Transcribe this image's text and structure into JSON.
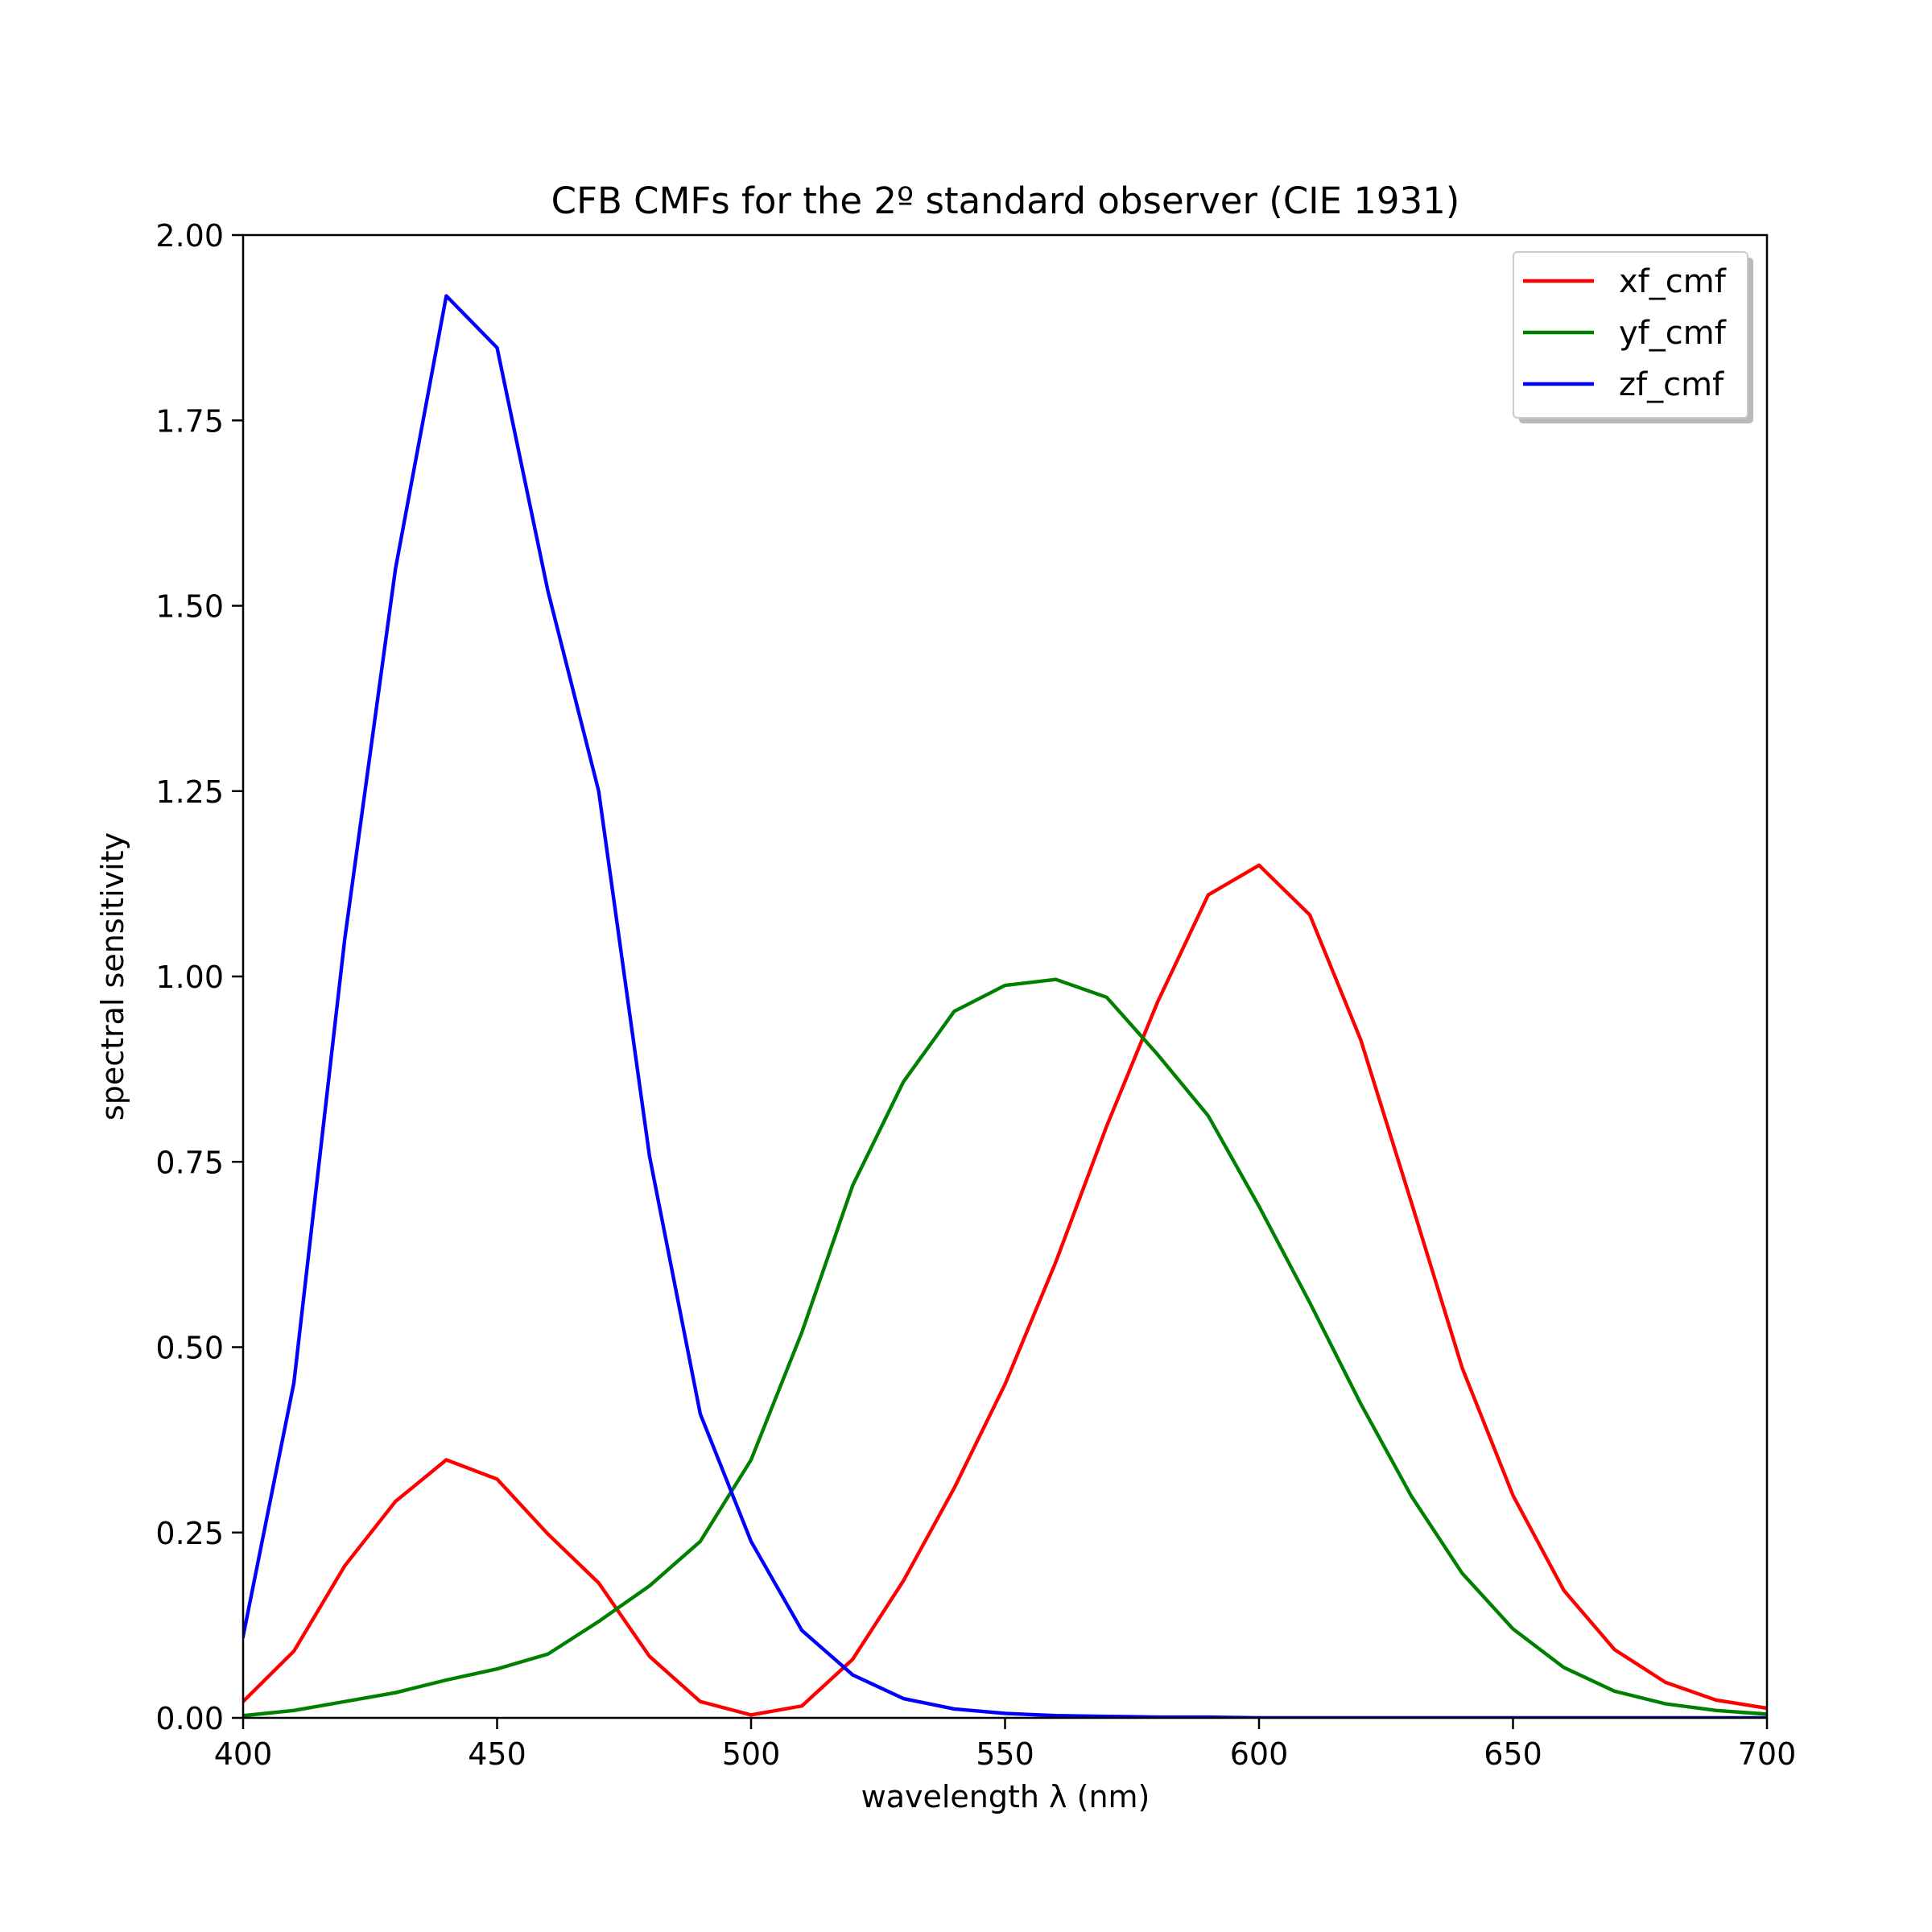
{
  "chart_data": {
    "type": "line",
    "title": "CFB CMFs for the 2º standard observer (CIE 1931)",
    "xlabel": "wavelength λ (nm)",
    "ylabel": "spectral sensitivity",
    "xlim": [
      400,
      700
    ],
    "ylim": [
      0,
      2.0
    ],
    "xticks": [
      "400",
      "450",
      "500",
      "550",
      "600",
      "650",
      "700"
    ],
    "yticks": [
      "0.00",
      "0.25",
      "0.50",
      "0.75",
      "1.00",
      "1.25",
      "1.50",
      "1.75",
      "2.00"
    ],
    "grid": false,
    "legend_position": "top-right",
    "x": [
      400,
      410,
      420,
      430,
      440,
      450,
      460,
      470,
      480,
      490,
      500,
      510,
      520,
      530,
      540,
      550,
      560,
      570,
      580,
      590,
      600,
      610,
      620,
      630,
      640,
      650,
      660,
      670,
      680,
      690,
      700
    ],
    "series": [
      {
        "name": "xf_cmf",
        "color": "#ff0000",
        "values": [
          0.022,
          0.09,
          0.205,
          0.292,
          0.348,
          0.322,
          0.248,
          0.182,
          0.083,
          0.022,
          0.004,
          0.016,
          0.079,
          0.185,
          0.31,
          0.45,
          0.615,
          0.798,
          0.965,
          1.11,
          1.15,
          1.083,
          0.915,
          0.695,
          0.472,
          0.3,
          0.172,
          0.092,
          0.048,
          0.024,
          0.013
        ]
      },
      {
        "name": "yf_cmf",
        "color": "#008000",
        "values": [
          0.003,
          0.01,
          0.022,
          0.034,
          0.051,
          0.066,
          0.086,
          0.13,
          0.178,
          0.238,
          0.348,
          0.52,
          0.718,
          0.858,
          0.953,
          0.988,
          0.996,
          0.972,
          0.895,
          0.812,
          0.69,
          0.56,
          0.424,
          0.299,
          0.195,
          0.12,
          0.068,
          0.036,
          0.019,
          0.01,
          0.005
        ]
      },
      {
        "name": "zf_cmf",
        "color": "#0000ff",
        "values": [
          0.11,
          0.452,
          1.05,
          1.55,
          1.918,
          1.848,
          1.52,
          1.25,
          0.758,
          0.41,
          0.238,
          0.118,
          0.058,
          0.026,
          0.012,
          0.006,
          0.003,
          0.002,
          0.001,
          0.001,
          0.0,
          0.0,
          0.0,
          0.0,
          0.0,
          0.0,
          0.0,
          0.0,
          0.0,
          0.0,
          0.0
        ]
      }
    ]
  }
}
